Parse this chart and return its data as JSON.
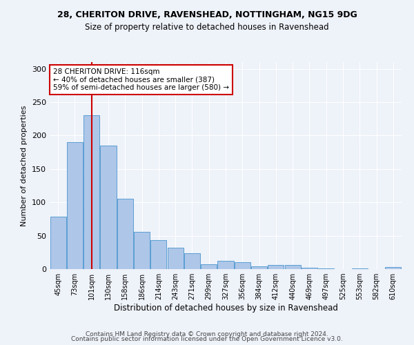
{
  "title_line1": "28, CHERITON DRIVE, RAVENSHEAD, NOTTINGHAM, NG15 9DG",
  "title_line2": "Size of property relative to detached houses in Ravenshead",
  "xlabel": "Distribution of detached houses by size in Ravenshead",
  "ylabel": "Number of detached properties",
  "footer_line1": "Contains HM Land Registry data © Crown copyright and database right 2024.",
  "footer_line2": "Contains public sector information licensed under the Open Government Licence v3.0.",
  "categories": [
    "45sqm",
    "73sqm",
    "101sqm",
    "130sqm",
    "158sqm",
    "186sqm",
    "214sqm",
    "243sqm",
    "271sqm",
    "299sqm",
    "327sqm",
    "356sqm",
    "384sqm",
    "412sqm",
    "440sqm",
    "469sqm",
    "497sqm",
    "525sqm",
    "553sqm",
    "582sqm",
    "610sqm"
  ],
  "values": [
    79,
    190,
    230,
    185,
    105,
    56,
    43,
    32,
    24,
    7,
    12,
    10,
    4,
    6,
    6,
    2,
    1,
    0,
    1,
    0,
    3
  ],
  "bar_color": "#aec6e8",
  "bar_edge_color": "#5a9fd4",
  "background_color": "#eef2f9",
  "grid_color": "#ffffff",
  "property_line_x": 2.0,
  "property_label": "28 CHERITON DRIVE: 116sqm",
  "annotation_line1": "← 40% of detached houses are smaller (387)",
  "annotation_line2": "59% of semi-detached houses are larger (580) →",
  "annotation_box_color": "#ffffff",
  "annotation_box_edge": "#cc0000",
  "vline_color": "#cc0000",
  "ylim": [
    0,
    310
  ],
  "yticks": [
    0,
    50,
    100,
    150,
    200,
    250,
    300
  ]
}
